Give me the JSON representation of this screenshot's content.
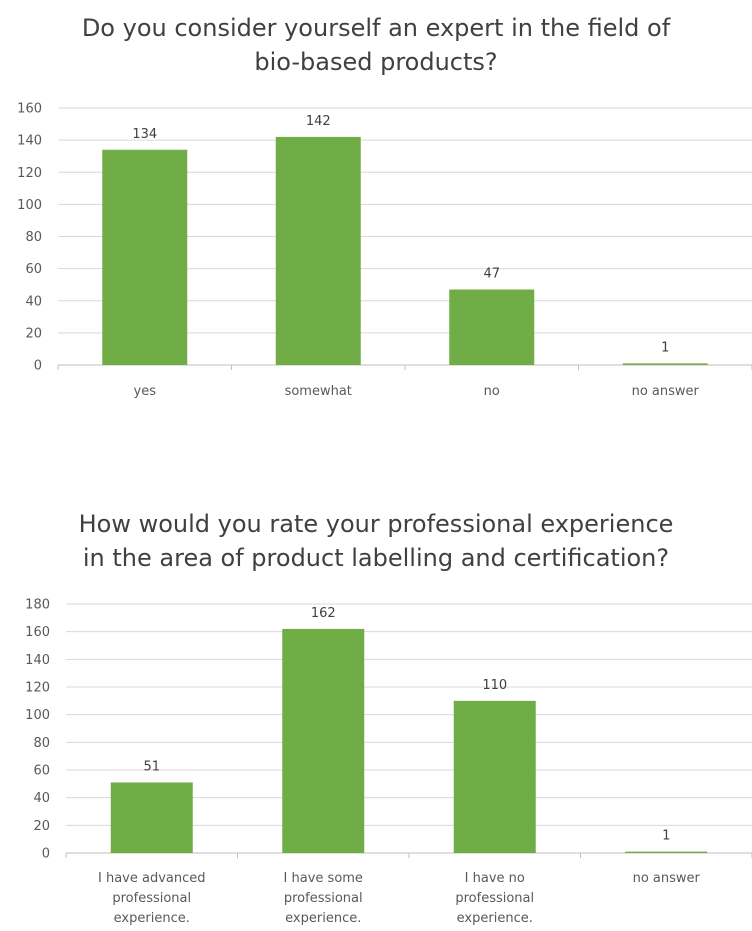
{
  "chart_data": [
    {
      "type": "bar",
      "title_lines": [
        "Do you consider yourself an expert in the field of",
        "bio-based products?"
      ],
      "categories": [
        [
          "yes"
        ],
        [
          "somewhat"
        ],
        [
          "no"
        ],
        [
          "no answer"
        ]
      ],
      "values": [
        134,
        142,
        47,
        1
      ],
      "ylim": [
        0,
        160
      ],
      "yticks": [
        0,
        20,
        40,
        60,
        80,
        100,
        120,
        140,
        160
      ],
      "grid": true,
      "bar_color": "#70ad47"
    },
    {
      "type": "bar",
      "title_lines": [
        "How would you rate your professional experience",
        "in the area of product labelling and certification?"
      ],
      "categories": [
        [
          "I have advanced",
          "professional",
          "experience."
        ],
        [
          "I have some",
          "professional",
          "experience."
        ],
        [
          "I have no",
          "professional",
          "experience."
        ],
        [
          "no answer"
        ]
      ],
      "values": [
        51,
        162,
        110,
        1
      ],
      "ylim": [
        0,
        180
      ],
      "yticks": [
        0,
        20,
        40,
        60,
        80,
        100,
        120,
        140,
        160,
        180
      ],
      "grid": true,
      "bar_color": "#70ad47"
    }
  ]
}
